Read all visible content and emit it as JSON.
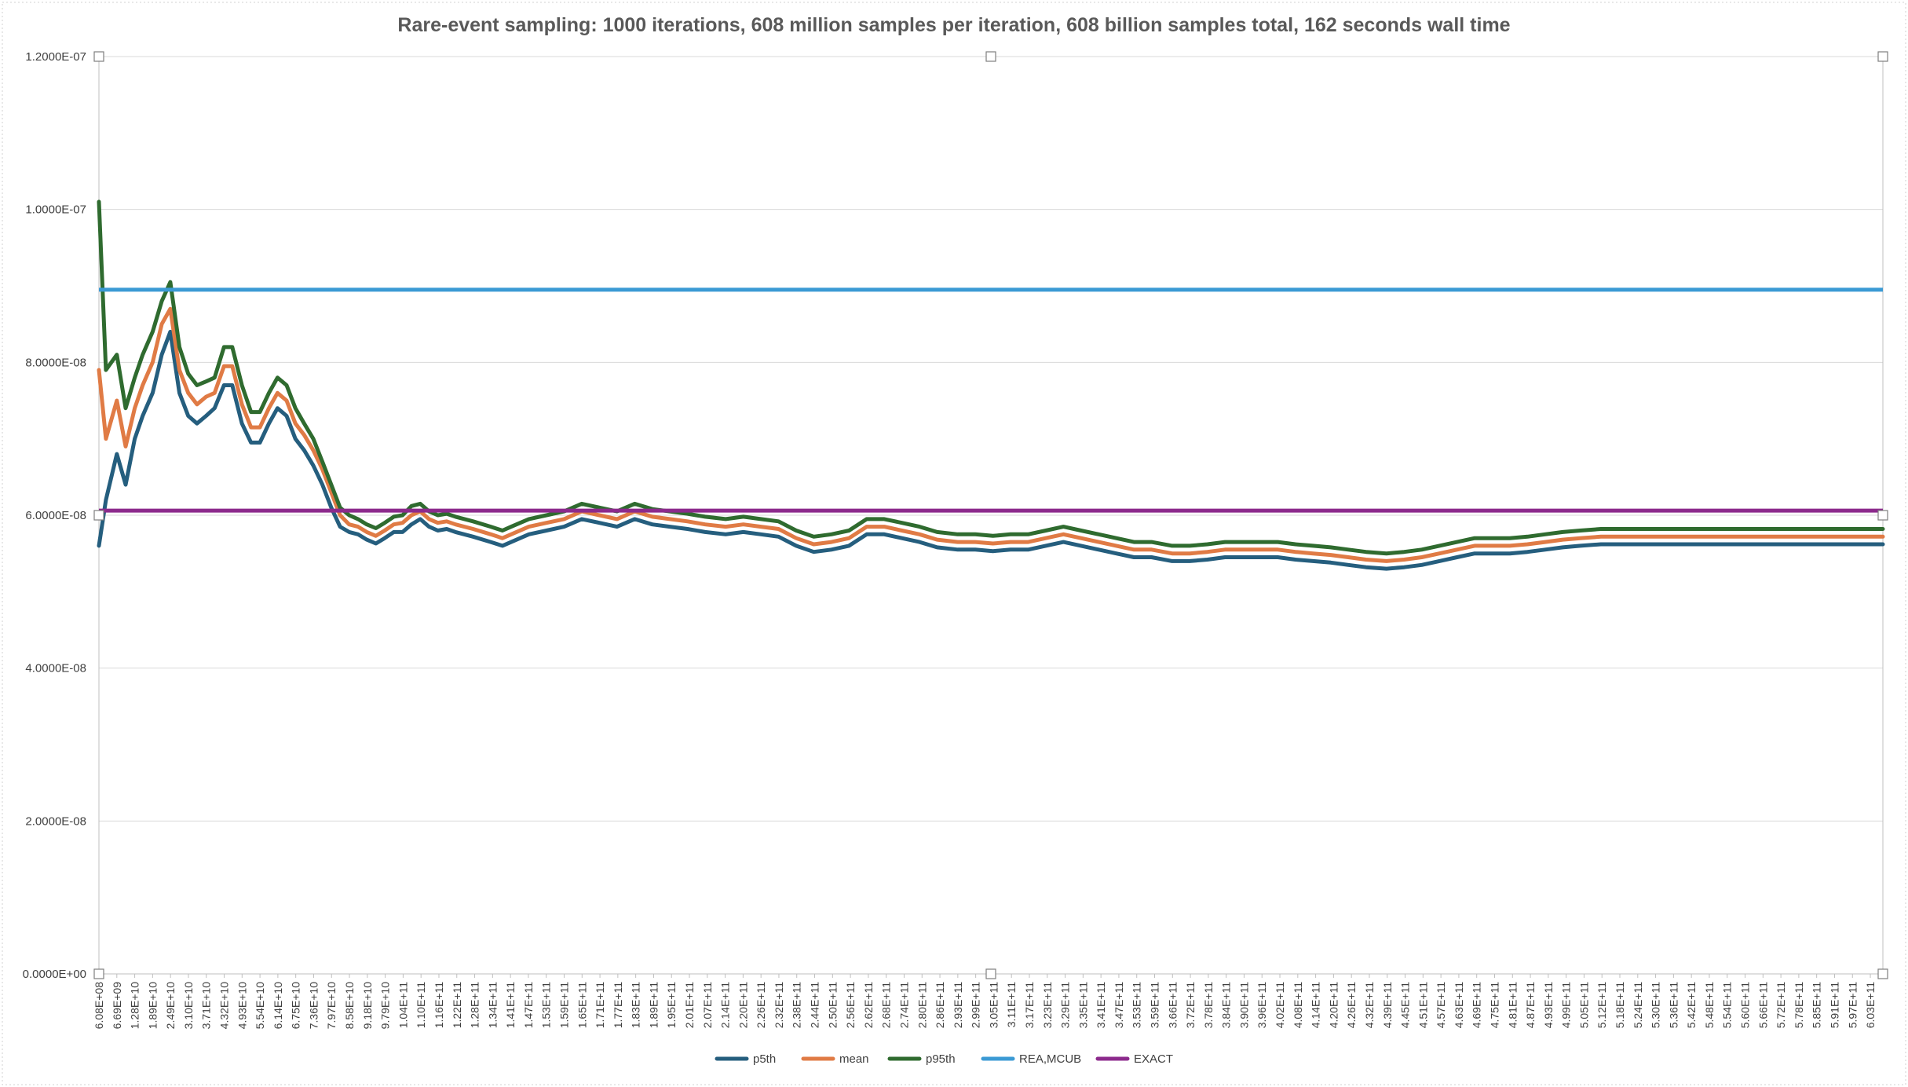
{
  "chart_data": {
    "type": "line",
    "title": "Rare-event sampling: 1000 iterations, 608 million samples per iteration,  608 billion samples total, 162 seconds wall time",
    "xlabel": "",
    "ylabel": "",
    "ylim": [
      0,
      1.2e-07
    ],
    "xlim": [
      608000000,
      608000000000
    ],
    "grid": true,
    "legend_position": "bottom",
    "y_ticks": [
      "0.0000E+00",
      "2.0000E-08",
      "4.0000E-08",
      "6.0000E-08",
      "8.0000E-08",
      "1.0000E-07",
      "1.2000E-07"
    ],
    "x_tick_labels": [
      "6.08E+08",
      "6.69E+09",
      "1.28E+10",
      "1.89E+10",
      "2.49E+10",
      "3.10E+10",
      "3.71E+10",
      "4.32E+10",
      "4.93E+10",
      "5.54E+10",
      "6.14E+10",
      "6.75E+10",
      "7.36E+10",
      "7.97E+10",
      "8.58E+10",
      "9.18E+10",
      "9.79E+10",
      "1.04E+11",
      "1.10E+11",
      "1.16E+11",
      "1.22E+11",
      "1.28E+11",
      "1.34E+11",
      "1.41E+11",
      "1.47E+11",
      "1.53E+11",
      "1.59E+11",
      "1.65E+11",
      "1.71E+11",
      "1.77E+11",
      "1.83E+11",
      "1.89E+11",
      "1.95E+11",
      "2.01E+11",
      "2.07E+11",
      "2.14E+11",
      "2.20E+11",
      "2.26E+11",
      "2.32E+11",
      "2.38E+11",
      "2.44E+11",
      "2.50E+11",
      "2.56E+11",
      "2.62E+11",
      "2.68E+11",
      "2.74E+11",
      "2.80E+11",
      "2.86E+11",
      "2.93E+11",
      "2.99E+11",
      "3.05E+11",
      "3.11E+11",
      "3.17E+11",
      "3.23E+11",
      "3.29E+11",
      "3.35E+11",
      "3.41E+11",
      "3.47E+11",
      "3.53E+11",
      "3.59E+11",
      "3.66E+11",
      "3.72E+11",
      "3.78E+11",
      "3.84E+11",
      "3.90E+11",
      "3.96E+11",
      "4.02E+11",
      "4.08E+11",
      "4.14E+11",
      "4.20E+11",
      "4.26E+11",
      "4.32E+11",
      "4.39E+11",
      "4.45E+11",
      "4.51E+11",
      "4.57E+11",
      "4.63E+11",
      "4.69E+11",
      "4.75E+11",
      "4.81E+11",
      "4.87E+11",
      "4.93E+11",
      "4.99E+11",
      "5.05E+11",
      "5.12E+11",
      "5.18E+11",
      "5.24E+11",
      "5.30E+11",
      "5.36E+11",
      "5.42E+11",
      "5.48E+11",
      "5.54E+11",
      "5.60E+11",
      "5.66E+11",
      "5.72E+11",
      "5.78E+11",
      "5.85E+11",
      "5.91E+11",
      "5.97E+11",
      "6.03E+11"
    ],
    "x": [
      608000000.0,
      3000000000.0,
      6690000000.0,
      9700000000.0,
      12800000000.0,
      15500000000.0,
      18900000000.0,
      22000000000.0,
      24900000000.0,
      28000000000.0,
      31000000000.0,
      34000000000.0,
      37100000000.0,
      40000000000.0,
      43200000000.0,
      46000000000.0,
      49300000000.0,
      52400000000.0,
      55400000000.0,
      58500000000.0,
      61400000000.0,
      64500000000.0,
      67500000000.0,
      70500000000.0,
      73600000000.0,
      76700000000.0,
      79700000000.0,
      82700000000.0,
      85800000000.0,
      88800000000.0,
      91800000000.0,
      94900000000.0,
      97900000000.0,
      101000000000.0,
      104000000000.0,
      107000000000.0,
      110000000000.0,
      113000000000.0,
      116000000000.0,
      119000000000.0,
      122000000000.0,
      128000000000.0,
      134000000000.0,
      138000000000.0,
      141000000000.0,
      147000000000.0,
      153000000000.0,
      159000000000.0,
      165000000000.0,
      171000000000.0,
      177000000000.0,
      183000000000.0,
      189000000000.0,
      195000000000.0,
      201000000000.0,
      207000000000.0,
      214000000000.0,
      220000000000.0,
      226000000000.0,
      232000000000.0,
      238000000000.0,
      244000000000.0,
      250000000000.0,
      256000000000.0,
      262000000000.0,
      268000000000.0,
      274000000000.0,
      280000000000.0,
      286000000000.0,
      293000000000.0,
      299000000000.0,
      305000000000.0,
      311000000000.0,
      317000000000.0,
      323000000000.0,
      329000000000.0,
      335000000000.0,
      341000000000.0,
      347000000000.0,
      353000000000.0,
      359000000000.0,
      366000000000.0,
      372000000000.0,
      378000000000.0,
      384000000000.0,
      390000000000.0,
      396000000000.0,
      402000000000.0,
      408000000000.0,
      414000000000.0,
      420000000000.0,
      426000000000.0,
      432000000000.0,
      439000000000.0,
      445000000000.0,
      451000000000.0,
      457000000000.0,
      463000000000.0,
      469000000000.0,
      475000000000.0,
      481000000000.0,
      487000000000.0,
      493000000000.0,
      499000000000.0,
      505000000000.0,
      512000000000.0,
      518000000000.0,
      524000000000.0,
      530000000000.0,
      536000000000.0,
      542000000000.0,
      548000000000.0,
      554000000000.0,
      560000000000.0,
      566000000000.0,
      572000000000.0,
      578000000000.0,
      585000000000.0,
      591000000000.0,
      597000000000.0,
      603000000000.0,
      608000000000.0
    ],
    "series": [
      {
        "name": "p5th",
        "color": "#255e7e",
        "values": [
          5.6e-08,
          6.2e-08,
          6.8e-08,
          6.4e-08,
          7e-08,
          7.3e-08,
          7.6e-08,
          8.1e-08,
          8.4e-08,
          7.6e-08,
          7.3e-08,
          7.2e-08,
          7.3e-08,
          7.4e-08,
          7.7e-08,
          7.7e-08,
          7.2e-08,
          6.95e-08,
          6.95e-08,
          7.2e-08,
          7.4e-08,
          7.3e-08,
          7e-08,
          6.85e-08,
          6.65e-08,
          6.4e-08,
          6.1e-08,
          5.85e-08,
          5.78e-08,
          5.75e-08,
          5.68e-08,
          5.63e-08,
          5.7e-08,
          5.78e-08,
          5.78e-08,
          5.88e-08,
          5.95e-08,
          5.85e-08,
          5.8e-08,
          5.82e-08,
          5.78e-08,
          5.72e-08,
          5.65e-08,
          5.6e-08,
          5.65e-08,
          5.75e-08,
          5.8e-08,
          5.85e-08,
          5.95e-08,
          5.9e-08,
          5.85e-08,
          5.95e-08,
          5.88e-08,
          5.85e-08,
          5.82e-08,
          5.78e-08,
          5.75e-08,
          5.78e-08,
          5.75e-08,
          5.72e-08,
          5.6e-08,
          5.52e-08,
          5.55e-08,
          5.6e-08,
          5.75e-08,
          5.75e-08,
          5.7e-08,
          5.65e-08,
          5.58e-08,
          5.55e-08,
          5.55e-08,
          5.53e-08,
          5.55e-08,
          5.55e-08,
          5.6e-08,
          5.65e-08,
          5.6e-08,
          5.55e-08,
          5.5e-08,
          5.45e-08,
          5.45e-08,
          5.4e-08,
          5.4e-08,
          5.42e-08,
          5.45e-08,
          5.45e-08,
          5.45e-08,
          5.45e-08,
          5.42e-08,
          5.4e-08,
          5.38e-08,
          5.35e-08,
          5.32e-08,
          5.3e-08,
          5.32e-08,
          5.35e-08,
          5.4e-08,
          5.45e-08,
          5.5e-08,
          5.5e-08,
          5.5e-08,
          5.52e-08,
          5.55e-08,
          5.58e-08,
          5.6e-08,
          5.62e-08,
          5.62e-08,
          5.62e-08,
          5.62e-08,
          5.62e-08,
          5.62e-08,
          5.62e-08,
          5.62e-08,
          5.62e-08,
          5.62e-08,
          5.62e-08,
          5.62e-08,
          5.62e-08,
          5.62e-08,
          5.62e-08,
          5.62e-08,
          5.62e-08
        ]
      },
      {
        "name": "mean",
        "color": "#e07b45",
        "values": [
          7.9e-08,
          7e-08,
          7.5e-08,
          6.9e-08,
          7.4e-08,
          7.7e-08,
          8e-08,
          8.5e-08,
          8.7e-08,
          7.9e-08,
          7.6e-08,
          7.45e-08,
          7.55e-08,
          7.6e-08,
          7.95e-08,
          7.95e-08,
          7.45e-08,
          7.15e-08,
          7.15e-08,
          7.4e-08,
          7.6e-08,
          7.5e-08,
          7.2e-08,
          7.05e-08,
          6.85e-08,
          6.6e-08,
          6.3e-08,
          6e-08,
          5.88e-08,
          5.85e-08,
          5.78e-08,
          5.73e-08,
          5.8e-08,
          5.88e-08,
          5.9e-08,
          6e-08,
          6.05e-08,
          5.95e-08,
          5.9e-08,
          5.92e-08,
          5.88e-08,
          5.82e-08,
          5.75e-08,
          5.7e-08,
          5.75e-08,
          5.85e-08,
          5.9e-08,
          5.95e-08,
          6.05e-08,
          6e-08,
          5.95e-08,
          6.05e-08,
          5.98e-08,
          5.95e-08,
          5.92e-08,
          5.88e-08,
          5.85e-08,
          5.88e-08,
          5.85e-08,
          5.82e-08,
          5.7e-08,
          5.62e-08,
          5.65e-08,
          5.7e-08,
          5.85e-08,
          5.85e-08,
          5.8e-08,
          5.75e-08,
          5.68e-08,
          5.65e-08,
          5.65e-08,
          5.63e-08,
          5.65e-08,
          5.65e-08,
          5.7e-08,
          5.75e-08,
          5.7e-08,
          5.65e-08,
          5.6e-08,
          5.55e-08,
          5.55e-08,
          5.5e-08,
          5.5e-08,
          5.52e-08,
          5.55e-08,
          5.55e-08,
          5.55e-08,
          5.55e-08,
          5.52e-08,
          5.5e-08,
          5.48e-08,
          5.45e-08,
          5.42e-08,
          5.4e-08,
          5.42e-08,
          5.45e-08,
          5.5e-08,
          5.55e-08,
          5.6e-08,
          5.6e-08,
          5.6e-08,
          5.62e-08,
          5.65e-08,
          5.68e-08,
          5.7e-08,
          5.72e-08,
          5.72e-08,
          5.72e-08,
          5.72e-08,
          5.72e-08,
          5.72e-08,
          5.72e-08,
          5.72e-08,
          5.72e-08,
          5.72e-08,
          5.72e-08,
          5.72e-08,
          5.72e-08,
          5.72e-08,
          5.72e-08,
          5.72e-08,
          5.72e-08
        ]
      },
      {
        "name": "p95th",
        "color": "#2f6b2f",
        "values": [
          1.01e-07,
          7.9e-08,
          8.1e-08,
          7.4e-08,
          7.8e-08,
          8.1e-08,
          8.4e-08,
          8.8e-08,
          9.05e-08,
          8.2e-08,
          7.85e-08,
          7.7e-08,
          7.75e-08,
          7.8e-08,
          8.2e-08,
          8.2e-08,
          7.7e-08,
          7.35e-08,
          7.35e-08,
          7.6e-08,
          7.8e-08,
          7.7e-08,
          7.4e-08,
          7.2e-08,
          7e-08,
          6.7e-08,
          6.4e-08,
          6.1e-08,
          6e-08,
          5.95e-08,
          5.88e-08,
          5.83e-08,
          5.9e-08,
          5.98e-08,
          6e-08,
          6.12e-08,
          6.15e-08,
          6.05e-08,
          6e-08,
          6.02e-08,
          5.98e-08,
          5.92e-08,
          5.85e-08,
          5.8e-08,
          5.85e-08,
          5.95e-08,
          6e-08,
          6.05e-08,
          6.15e-08,
          6.1e-08,
          6.05e-08,
          6.15e-08,
          6.08e-08,
          6.05e-08,
          6.02e-08,
          5.98e-08,
          5.95e-08,
          5.98e-08,
          5.95e-08,
          5.92e-08,
          5.8e-08,
          5.72e-08,
          5.75e-08,
          5.8e-08,
          5.95e-08,
          5.95e-08,
          5.9e-08,
          5.85e-08,
          5.78e-08,
          5.75e-08,
          5.75e-08,
          5.73e-08,
          5.75e-08,
          5.75e-08,
          5.8e-08,
          5.85e-08,
          5.8e-08,
          5.75e-08,
          5.7e-08,
          5.65e-08,
          5.65e-08,
          5.6e-08,
          5.6e-08,
          5.62e-08,
          5.65e-08,
          5.65e-08,
          5.65e-08,
          5.65e-08,
          5.62e-08,
          5.6e-08,
          5.58e-08,
          5.55e-08,
          5.52e-08,
          5.5e-08,
          5.52e-08,
          5.55e-08,
          5.6e-08,
          5.65e-08,
          5.7e-08,
          5.7e-08,
          5.7e-08,
          5.72e-08,
          5.75e-08,
          5.78e-08,
          5.8e-08,
          5.82e-08,
          5.82e-08,
          5.82e-08,
          5.82e-08,
          5.82e-08,
          5.82e-08,
          5.82e-08,
          5.82e-08,
          5.82e-08,
          5.82e-08,
          5.82e-08,
          5.82e-08,
          5.82e-08,
          5.82e-08,
          5.82e-08,
          5.82e-08,
          5.82e-08
        ]
      },
      {
        "name": "REA,MCUB",
        "color": "#3b9ad4",
        "constant": 8.95e-08
      },
      {
        "name": "EXACT",
        "color": "#8c2a8c",
        "constant": 6.06e-08
      }
    ]
  }
}
